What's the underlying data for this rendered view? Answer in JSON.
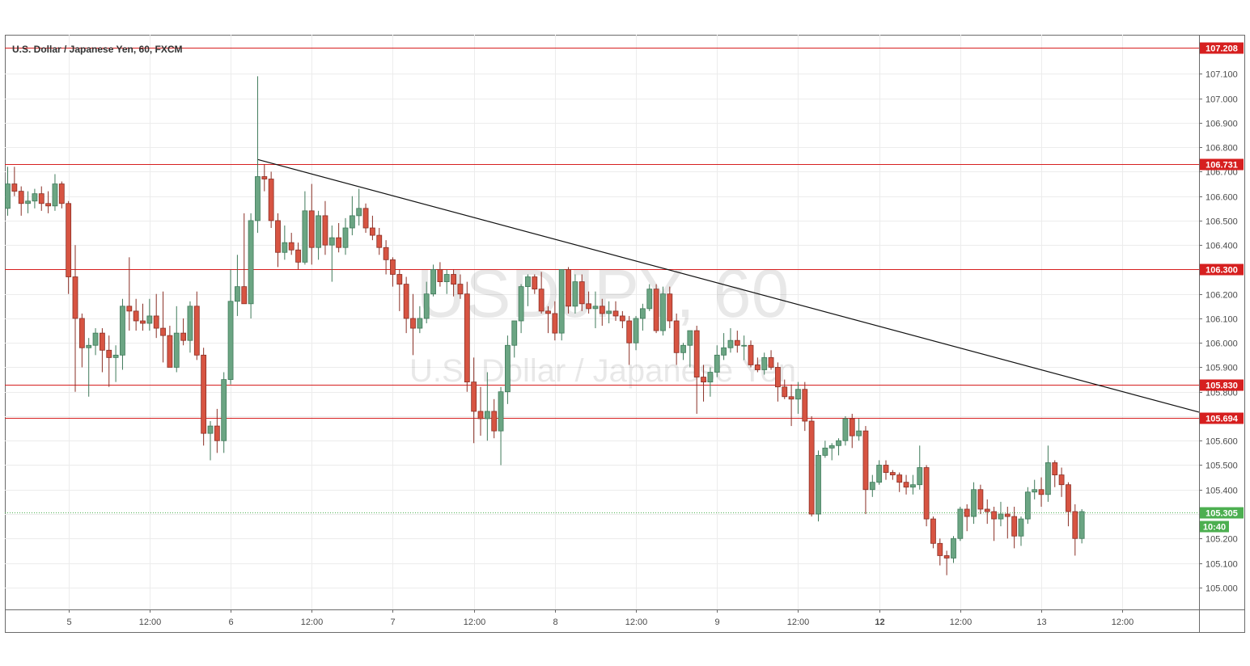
{
  "chart_data": {
    "type": "candlestick",
    "title": "U.S. Dollar / Japanese Yen, 60, FXCM",
    "watermark": {
      "symbol": "USDJPY, 60",
      "name": "U.S. Dollar / Japanese Yen"
    },
    "ylim": [
      104.91,
      107.26
    ],
    "grid": true,
    "y_ticks": [
      "105.000",
      "105.100",
      "105.200",
      "105.300",
      "105.400",
      "105.500",
      "105.600",
      "105.700",
      "105.800",
      "105.900",
      "106.000",
      "106.100",
      "106.200",
      "106.300",
      "106.400",
      "106.500",
      "106.600",
      "106.700",
      "106.800",
      "106.900",
      "107.000",
      "107.100"
    ],
    "x_ticks": [
      {
        "label": "5",
        "bar": 9,
        "bold": false
      },
      {
        "label": "12:00",
        "bar": 21,
        "bold": false
      },
      {
        "label": "6",
        "bar": 33,
        "bold": false
      },
      {
        "label": "12:00",
        "bar": 45,
        "bold": false
      },
      {
        "label": "7",
        "bar": 57,
        "bold": false
      },
      {
        "label": "12:00",
        "bar": 69,
        "bold": false
      },
      {
        "label": "8",
        "bar": 81,
        "bold": false
      },
      {
        "label": "12:00",
        "bar": 93,
        "bold": false
      },
      {
        "label": "9",
        "bar": 105,
        "bold": false
      },
      {
        "label": "12:00",
        "bar": 117,
        "bold": false
      },
      {
        "label": "12",
        "bar": 129,
        "bold": true
      },
      {
        "label": "12:00",
        "bar": 141,
        "bold": false
      },
      {
        "label": "13",
        "bar": 153,
        "bold": false
      },
      {
        "label": "12:00",
        "bar": 165,
        "bold": false
      }
    ],
    "ohlc": [
      [
        106.55,
        106.72,
        106.52,
        106.65
      ],
      [
        106.65,
        106.72,
        106.6,
        106.62
      ],
      [
        106.62,
        106.64,
        106.52,
        106.57
      ],
      [
        106.57,
        106.62,
        106.53,
        106.58
      ],
      [
        106.58,
        106.63,
        106.55,
        106.61
      ],
      [
        106.61,
        106.64,
        106.54,
        106.57
      ],
      [
        106.57,
        106.62,
        106.53,
        106.56
      ],
      [
        106.56,
        106.69,
        106.54,
        106.65
      ],
      [
        106.65,
        106.66,
        106.55,
        106.57
      ],
      [
        106.57,
        106.58,
        106.2,
        106.27
      ],
      [
        106.27,
        106.4,
        105.8,
        106.1
      ],
      [
        106.1,
        106.12,
        105.9,
        105.98
      ],
      [
        105.98,
        106.02,
        105.78,
        105.99
      ],
      [
        105.99,
        106.06,
        105.95,
        106.04
      ],
      [
        106.04,
        106.06,
        105.88,
        105.97
      ],
      [
        105.97,
        106.03,
        105.82,
        105.94
      ],
      [
        105.94,
        105.99,
        105.84,
        105.95
      ],
      [
        105.95,
        106.18,
        105.89,
        106.15
      ],
      [
        106.15,
        106.35,
        106.05,
        106.13
      ],
      [
        106.13,
        106.18,
        106.05,
        106.09
      ],
      [
        106.09,
        106.16,
        106.05,
        106.08
      ],
      [
        106.08,
        106.18,
        106.05,
        106.11
      ],
      [
        106.11,
        106.2,
        106.02,
        106.06
      ],
      [
        106.06,
        106.21,
        105.92,
        106.03
      ],
      [
        106.03,
        106.07,
        105.9,
        105.9
      ],
      [
        105.9,
        106.15,
        105.88,
        106.04
      ],
      [
        106.04,
        106.1,
        105.99,
        106.01
      ],
      [
        106.01,
        106.17,
        105.96,
        106.15
      ],
      [
        106.15,
        106.21,
        105.93,
        105.95
      ],
      [
        105.95,
        105.98,
        105.58,
        105.63
      ],
      [
        105.63,
        105.68,
        105.52,
        105.66
      ],
      [
        105.66,
        105.73,
        105.55,
        105.6
      ],
      [
        105.6,
        105.88,
        105.55,
        105.85
      ],
      [
        105.85,
        106.3,
        105.83,
        106.17
      ],
      [
        106.17,
        106.36,
        106.11,
        106.23
      ],
      [
        106.23,
        106.53,
        106.16,
        106.16
      ],
      [
        106.16,
        106.53,
        106.1,
        106.5
      ],
      [
        106.5,
        107.09,
        106.45,
        106.68
      ],
      [
        106.68,
        106.73,
        106.62,
        106.67
      ],
      [
        106.67,
        106.7,
        106.47,
        106.5
      ],
      [
        106.5,
        106.53,
        106.31,
        106.37
      ],
      [
        106.37,
        106.48,
        106.34,
        106.41
      ],
      [
        106.41,
        106.45,
        106.36,
        106.38
      ],
      [
        106.38,
        106.41,
        106.3,
        106.33
      ],
      [
        106.33,
        106.62,
        106.32,
        106.54
      ],
      [
        106.54,
        106.65,
        106.32,
        106.39
      ],
      [
        106.39,
        106.54,
        106.34,
        106.52
      ],
      [
        106.52,
        106.58,
        106.36,
        106.4
      ],
      [
        106.4,
        106.48,
        106.25,
        106.43
      ],
      [
        106.43,
        106.49,
        106.37,
        106.39
      ],
      [
        106.39,
        106.51,
        106.36,
        106.47
      ],
      [
        106.47,
        106.6,
        106.44,
        106.52
      ],
      [
        106.52,
        106.63,
        106.48,
        106.55
      ],
      [
        106.55,
        106.57,
        106.45,
        106.47
      ],
      [
        106.47,
        106.52,
        106.42,
        106.44
      ],
      [
        106.44,
        106.47,
        106.36,
        106.39
      ],
      [
        106.39,
        106.42,
        106.28,
        106.34
      ],
      [
        106.34,
        106.35,
        106.23,
        106.28
      ],
      [
        106.28,
        106.3,
        106.13,
        106.24
      ],
      [
        106.24,
        106.27,
        106.04,
        106.1
      ],
      [
        106.1,
        106.2,
        105.95,
        106.06
      ],
      [
        106.06,
        106.15,
        106.04,
        106.1
      ],
      [
        106.1,
        106.25,
        106.08,
        106.2
      ],
      [
        106.2,
        106.32,
        106.19,
        106.3
      ],
      [
        106.3,
        106.33,
        106.23,
        106.25
      ],
      [
        106.25,
        106.3,
        106.2,
        106.28
      ],
      [
        106.28,
        106.3,
        106.19,
        106.24
      ],
      [
        106.24,
        106.28,
        106.18,
        106.2
      ],
      [
        106.2,
        106.25,
        105.8,
        105.84
      ],
      [
        105.84,
        105.94,
        105.59,
        105.72
      ],
      [
        105.72,
        105.82,
        105.62,
        105.69
      ],
      [
        105.69,
        105.88,
        105.6,
        105.72
      ],
      [
        105.72,
        105.77,
        105.61,
        105.64
      ],
      [
        105.64,
        105.82,
        105.5,
        105.8
      ],
      [
        105.8,
        106.03,
        105.75,
        105.99
      ],
      [
        105.99,
        106.08,
        105.94,
        106.09
      ],
      [
        106.09,
        106.24,
        106.04,
        106.23
      ],
      [
        106.23,
        106.28,
        106.15,
        106.27
      ],
      [
        106.27,
        106.28,
        106.2,
        106.22
      ],
      [
        106.22,
        106.29,
        106.12,
        106.13
      ],
      [
        106.13,
        106.15,
        106.04,
        106.12
      ],
      [
        106.12,
        106.17,
        106.01,
        106.04
      ],
      [
        106.04,
        106.3,
        106.01,
        106.3
      ],
      [
        106.3,
        106.31,
        106.12,
        106.15
      ],
      [
        106.15,
        106.28,
        106.12,
        106.25
      ],
      [
        106.25,
        106.28,
        106.13,
        106.16
      ],
      [
        106.16,
        106.21,
        106.12,
        106.14
      ],
      [
        106.14,
        106.21,
        106.06,
        106.15
      ],
      [
        106.15,
        106.18,
        106.07,
        106.12
      ],
      [
        106.12,
        106.17,
        106.08,
        106.13
      ],
      [
        106.13,
        106.17,
        106.09,
        106.11
      ],
      [
        106.11,
        106.13,
        106.06,
        106.09
      ],
      [
        106.09,
        106.11,
        105.91,
        106.0
      ],
      [
        106.0,
        106.11,
        105.97,
        106.1
      ],
      [
        106.1,
        106.16,
        106.05,
        106.14
      ],
      [
        106.14,
        106.24,
        106.13,
        106.22
      ],
      [
        106.22,
        106.24,
        106.04,
        106.05
      ],
      [
        106.05,
        106.23,
        106.03,
        106.2
      ],
      [
        106.2,
        106.23,
        106.06,
        106.09
      ],
      [
        106.09,
        106.12,
        105.91,
        105.96
      ],
      [
        105.96,
        106.0,
        105.93,
        105.99
      ],
      [
        105.99,
        106.05,
        105.9,
        106.05
      ],
      [
        106.05,
        106.07,
        105.71,
        105.86
      ],
      [
        105.86,
        105.91,
        105.76,
        105.84
      ],
      [
        105.84,
        105.9,
        105.78,
        105.88
      ],
      [
        105.88,
        105.99,
        105.86,
        105.95
      ],
      [
        105.95,
        106.04,
        105.93,
        105.98
      ],
      [
        105.98,
        106.06,
        105.96,
        106.01
      ],
      [
        106.01,
        106.05,
        105.96,
        105.99
      ],
      [
        105.99,
        106.03,
        105.93,
        105.99
      ],
      [
        105.99,
        106.01,
        105.9,
        105.91
      ],
      [
        105.91,
        105.94,
        105.88,
        105.89
      ],
      [
        105.89,
        105.96,
        105.87,
        105.94
      ],
      [
        105.94,
        105.97,
        105.89,
        105.9
      ],
      [
        105.9,
        105.92,
        105.76,
        105.82
      ],
      [
        105.82,
        105.85,
        105.77,
        105.78
      ],
      [
        105.78,
        105.83,
        105.66,
        105.77
      ],
      [
        105.77,
        105.84,
        105.71,
        105.81
      ],
      [
        105.81,
        105.84,
        105.64,
        105.68
      ],
      [
        105.68,
        105.7,
        105.29,
        105.3
      ],
      [
        105.3,
        105.56,
        105.27,
        105.54
      ],
      [
        105.54,
        105.6,
        105.53,
        105.57
      ],
      [
        105.57,
        105.59,
        105.52,
        105.58
      ],
      [
        105.58,
        105.61,
        105.54,
        105.6
      ],
      [
        105.6,
        105.7,
        105.58,
        105.69
      ],
      [
        105.69,
        105.71,
        105.57,
        105.62
      ],
      [
        105.62,
        105.69,
        105.6,
        105.64
      ],
      [
        105.64,
        105.66,
        105.3,
        105.4
      ],
      [
        105.4,
        105.46,
        105.37,
        105.43
      ],
      [
        105.43,
        105.52,
        105.42,
        105.5
      ],
      [
        105.5,
        105.52,
        105.44,
        105.47
      ],
      [
        105.47,
        105.48,
        105.44,
        105.46
      ],
      [
        105.46,
        105.47,
        105.39,
        105.43
      ],
      [
        105.43,
        105.46,
        105.38,
        105.41
      ],
      [
        105.41,
        105.46,
        105.38,
        105.42
      ],
      [
        105.42,
        105.58,
        105.4,
        105.49
      ],
      [
        105.49,
        105.5,
        105.25,
        105.28
      ],
      [
        105.28,
        105.29,
        105.16,
        105.18
      ],
      [
        105.18,
        105.2,
        105.09,
        105.13
      ],
      [
        105.13,
        105.15,
        105.05,
        105.12
      ],
      [
        105.12,
        105.21,
        105.1,
        105.2
      ],
      [
        105.2,
        105.33,
        105.19,
        105.32
      ],
      [
        105.32,
        105.34,
        105.23,
        105.29
      ],
      [
        105.29,
        105.43,
        105.26,
        105.4
      ],
      [
        105.4,
        105.42,
        105.3,
        105.32
      ],
      [
        105.32,
        105.36,
        105.26,
        105.31
      ],
      [
        105.31,
        105.33,
        105.19,
        105.28
      ],
      [
        105.28,
        105.35,
        105.25,
        105.3
      ],
      [
        105.3,
        105.33,
        105.2,
        105.29
      ],
      [
        105.29,
        105.33,
        105.16,
        105.21
      ],
      [
        105.21,
        105.29,
        105.17,
        105.28
      ],
      [
        105.28,
        105.41,
        105.26,
        105.39
      ],
      [
        105.39,
        105.44,
        105.36,
        105.4
      ],
      [
        105.4,
        105.45,
        105.33,
        105.38
      ],
      [
        105.38,
        105.58,
        105.35,
        105.51
      ],
      [
        105.51,
        105.52,
        105.41,
        105.46
      ],
      [
        105.46,
        105.49,
        105.37,
        105.42
      ],
      [
        105.42,
        105.43,
        105.25,
        105.31
      ],
      [
        105.31,
        105.34,
        105.13,
        105.2
      ],
      [
        105.2,
        105.32,
        105.18,
        105.31
      ]
    ],
    "horizontal_lines": [
      {
        "price": 107.208,
        "label": "107.208"
      },
      {
        "price": 106.731,
        "label": "106.731"
      },
      {
        "price": 106.3,
        "label": "106.300"
      },
      {
        "price": 105.83,
        "label": "105.830"
      },
      {
        "price": 105.694,
        "label": "105.694"
      }
    ],
    "trendline": {
      "from": {
        "bar": 37,
        "price": 106.75
      },
      "to": {
        "bar": 184,
        "price": 105.66
      }
    },
    "current_price": {
      "price": 105.305,
      "label": "105.305",
      "countdown": "10:40"
    },
    "colors": {
      "up": "#6ba583",
      "down": "#d75442",
      "level_line": "#d61f1f",
      "trendline": "#111111",
      "grid": "#ececec",
      "current_price": "#4caf50"
    }
  }
}
